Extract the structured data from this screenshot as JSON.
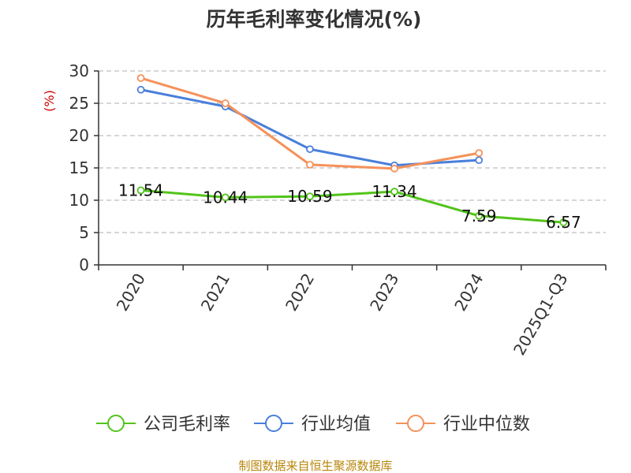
{
  "chart_data": {
    "type": "line",
    "title": "历年毛利率变化情况(%)",
    "ylabel": "(%)",
    "xlabel": "",
    "categories": [
      "2020",
      "2021",
      "2022",
      "2023",
      "2024",
      "2025Q1-Q3"
    ],
    "ylim": [
      0,
      30
    ],
    "yticks": [
      0,
      5,
      10,
      15,
      20,
      25,
      30
    ],
    "grid": true,
    "legend_position": "bottom",
    "series": [
      {
        "name": "公司毛利率",
        "color": "#52c41a",
        "show_labels": true,
        "labels": [
          "11.54",
          "10.44",
          "10.59",
          "11.34",
          "7.59",
          "6.57"
        ],
        "values": [
          11.54,
          10.44,
          10.59,
          11.34,
          7.59,
          6.57
        ]
      },
      {
        "name": "行业均值",
        "color": "#4a7fdb",
        "show_labels": false,
        "values": [
          27.1,
          24.5,
          17.9,
          15.4,
          16.2,
          null
        ]
      },
      {
        "name": "行业中位数",
        "color": "#f5915a",
        "show_labels": false,
        "values": [
          28.9,
          25.0,
          15.5,
          14.9,
          17.3,
          null
        ]
      }
    ]
  },
  "source_note": "制图数据来自恒生聚源数据库"
}
